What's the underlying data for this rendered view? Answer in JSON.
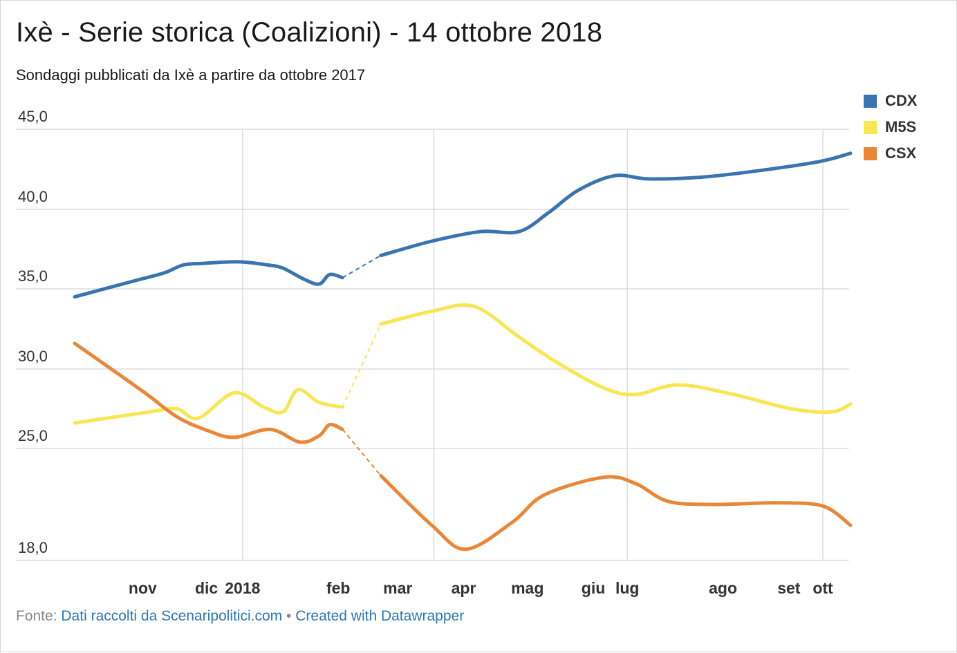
{
  "header": {
    "title": "Ixè - Serie storica (Coalizioni) - 14 ottobre 2018",
    "subtitle": "Sondaggi pubblicati da Ixè a partire da ottobre 2017"
  },
  "footer": {
    "source_prefix": "Fonte:",
    "source_link": "Dati raccolti da Scenaripolitici.com",
    "separator": "•",
    "credit_link": "Created with Datawrapper"
  },
  "colors": {
    "CDX": "#3a74b0",
    "M5S": "#f8e753",
    "CSX": "#ea8638",
    "grid": "#dddddd"
  },
  "chart_data": {
    "type": "line",
    "title": "Ixè - Serie storica (Coalizioni) - 14 ottobre 2018",
    "subtitle": "Sondaggi pubblicati da Ixè a partire da ottobre 2017",
    "xlabel": "",
    "ylabel": "",
    "y_axis_scale": "non-linear: 45,0 / 40,0 / 35,0 / 30,0 / 25,0 evenly spaced, 18,0 at bottom",
    "y_ticks": [
      45.0,
      40.0,
      35.0,
      30.0,
      25.0,
      18.0
    ],
    "y_tick_labels": [
      "45,0",
      "40,0",
      "35,0",
      "30,0",
      "25,0",
      "18,0"
    ],
    "x_range": [
      "2017-10-14",
      "2018-10-14"
    ],
    "x_ticks": [
      "2017-11-15",
      "2017-12-15",
      "2018-01-01",
      "2018-02-15",
      "2018-03-15",
      "2018-04-15",
      "2018-05-15",
      "2018-06-15",
      "2018-07-01",
      "2018-08-15",
      "2018-09-15",
      "2018-10-01"
    ],
    "x_tick_labels": [
      "nov",
      "dic",
      "2018",
      "feb",
      "mar",
      "apr",
      "mag",
      "giu",
      "lug",
      "ago",
      "set",
      "ott"
    ],
    "x_gridlines": [
      "2018-01-01",
      "2018-04-01",
      "2018-07-01",
      "2018-10-01"
    ],
    "gap": {
      "from": "2018-02-17",
      "to": "2018-03-07",
      "style": "dashed"
    },
    "legend": [
      "CDX",
      "M5S",
      "CSX"
    ],
    "legend_position": "top-right",
    "series": [
      {
        "name": "CDX",
        "points": [
          [
            "2017-10-14",
            34.5
          ],
          [
            "2017-10-28",
            35.0
          ],
          [
            "2017-11-11",
            35.5
          ],
          [
            "2017-11-25",
            36.0
          ],
          [
            "2017-12-04",
            36.5
          ],
          [
            "2017-12-13",
            36.6
          ],
          [
            "2017-12-30",
            36.7
          ],
          [
            "2018-01-13",
            36.5
          ],
          [
            "2018-01-20",
            36.3
          ],
          [
            "2018-01-30",
            35.6
          ],
          [
            "2018-02-06",
            35.3
          ],
          [
            "2018-02-11",
            35.9
          ],
          [
            "2018-02-17",
            35.7
          ],
          [
            "2018-03-07",
            37.1
          ],
          [
            "2018-03-31",
            38.0
          ],
          [
            "2018-04-23",
            38.6
          ],
          [
            "2018-05-11",
            38.6
          ],
          [
            "2018-05-25",
            39.8
          ],
          [
            "2018-06-08",
            41.2
          ],
          [
            "2018-06-25",
            42.1
          ],
          [
            "2018-07-11",
            41.9
          ],
          [
            "2018-08-04",
            42.0
          ],
          [
            "2018-08-31",
            42.4
          ],
          [
            "2018-09-30",
            43.0
          ],
          [
            "2018-10-14",
            43.5
          ]
        ]
      },
      {
        "name": "M5S",
        "points": [
          [
            "2017-10-14",
            26.6
          ],
          [
            "2017-11-18",
            27.3
          ],
          [
            "2017-12-01",
            27.5
          ],
          [
            "2017-12-11",
            26.9
          ],
          [
            "2017-12-28",
            28.5
          ],
          [
            "2018-01-11",
            27.6
          ],
          [
            "2018-01-20",
            27.3
          ],
          [
            "2018-01-27",
            28.7
          ],
          [
            "2018-02-06",
            27.9
          ],
          [
            "2018-02-17",
            27.6
          ],
          [
            "2018-03-07",
            32.8
          ],
          [
            "2018-03-31",
            33.6
          ],
          [
            "2018-04-20",
            33.9
          ],
          [
            "2018-05-11",
            32.0
          ],
          [
            "2018-05-29",
            30.4
          ],
          [
            "2018-06-20",
            28.8
          ],
          [
            "2018-07-05",
            28.4
          ],
          [
            "2018-07-25",
            29.0
          ],
          [
            "2018-08-20",
            28.4
          ],
          [
            "2018-09-16",
            27.5
          ],
          [
            "2018-10-05",
            27.3
          ],
          [
            "2018-10-14",
            27.8
          ]
        ]
      },
      {
        "name": "CSX",
        "points": [
          [
            "2017-10-14",
            31.6
          ],
          [
            "2017-11-15",
            28.6
          ],
          [
            "2017-12-01",
            27.0
          ],
          [
            "2017-12-16",
            26.1
          ],
          [
            "2017-12-28",
            25.7
          ],
          [
            "2018-01-14",
            26.2
          ],
          [
            "2018-01-28",
            25.4
          ],
          [
            "2018-02-06",
            25.8
          ],
          [
            "2018-02-11",
            26.5
          ],
          [
            "2018-02-17",
            26.2
          ],
          [
            "2018-03-07",
            23.3
          ],
          [
            "2018-03-31",
            20.2
          ],
          [
            "2018-04-16",
            18.7
          ],
          [
            "2018-05-08",
            20.4
          ],
          [
            "2018-05-23",
            22.1
          ],
          [
            "2018-06-20",
            23.2
          ],
          [
            "2018-07-05",
            22.8
          ],
          [
            "2018-07-20",
            21.7
          ],
          [
            "2018-08-10",
            21.5
          ],
          [
            "2018-09-10",
            21.6
          ],
          [
            "2018-10-01",
            21.4
          ],
          [
            "2018-10-14",
            20.2
          ]
        ]
      }
    ]
  }
}
